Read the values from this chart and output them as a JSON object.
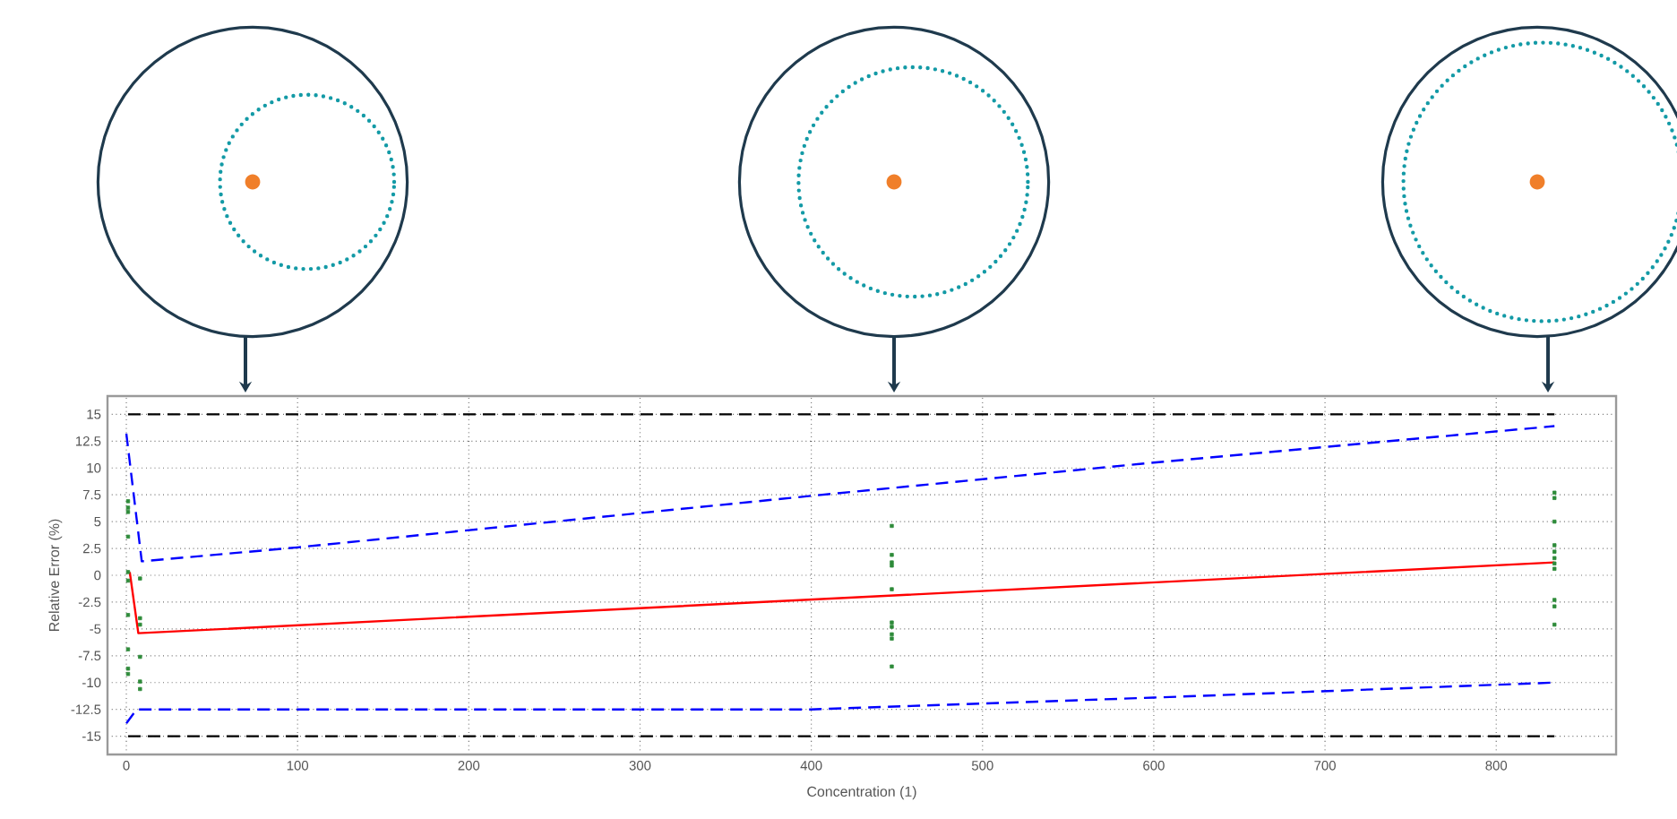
{
  "chart_data": {
    "type": "line",
    "xlabel": "Concentration (1)",
    "ylabel": "Relative Error (%)",
    "xlim": [
      -11,
      870
    ],
    "ylim": [
      -16.7,
      16.7
    ],
    "xticks": [
      0,
      100,
      200,
      300,
      400,
      500,
      600,
      700,
      800
    ],
    "yticks": [
      15,
      12.5,
      10,
      7.5,
      5,
      2.5,
      0,
      -2.5,
      -5,
      -7.5,
      -10,
      -12.5,
      -15
    ],
    "grid": true,
    "marker": "none",
    "series": [
      {
        "color": "#000000",
        "line_style": "dashed",
        "x": [
          1,
          834
        ],
        "values": [
          15,
          15
        ]
      },
      {
        "color": "#000000",
        "line_style": "dashed",
        "x": [
          1,
          834
        ],
        "values": [
          -15,
          -15
        ]
      },
      {
        "color": "#0000ff",
        "line_style": "dashed",
        "x": [
          0,
          9,
          100,
          400,
          600,
          834
        ],
        "values": [
          13.2,
          1.3,
          2.6,
          7.4,
          10.5,
          13.9
        ]
      },
      {
        "color": "#0000ff",
        "line_style": "dashed",
        "x": [
          0,
          6,
          400,
          600,
          834
        ],
        "values": [
          -13.8,
          -12.5,
          -12.5,
          -11.4,
          -10.0
        ]
      },
      {
        "color": "#ff0000",
        "line_style": "solid",
        "x": [
          2,
          7,
          834
        ],
        "values": [
          0.3,
          -5.4,
          1.2
        ]
      },
      {
        "type": "scatter",
        "color": "#2e8b3a",
        "marker": "square",
        "x": [
          1,
          1,
          1,
          1,
          1,
          1,
          1,
          1,
          1,
          1,
          8,
          8,
          8,
          8,
          8,
          8,
          447,
          447,
          447,
          447,
          447,
          447,
          447,
          447,
          447,
          447,
          834,
          834,
          834,
          834,
          834,
          834,
          834,
          834,
          834,
          834,
          834
        ],
        "values": [
          6.9,
          6.3,
          5.9,
          3.6,
          0.3,
          -0.5,
          -3.7,
          -6.9,
          -8.7,
          -9.2,
          -0.3,
          -4.0,
          -4.6,
          -7.6,
          -9.9,
          -10.6,
          4.6,
          1.9,
          1.2,
          0.9,
          -1.3,
          -4.4,
          -4.8,
          -5.5,
          -5.9,
          -8.5,
          7.7,
          7.2,
          5.0,
          2.8,
          2.2,
          1.6,
          1.1,
          0.6,
          -2.3,
          -2.9,
          -4.6
        ]
      }
    ]
  }
}
